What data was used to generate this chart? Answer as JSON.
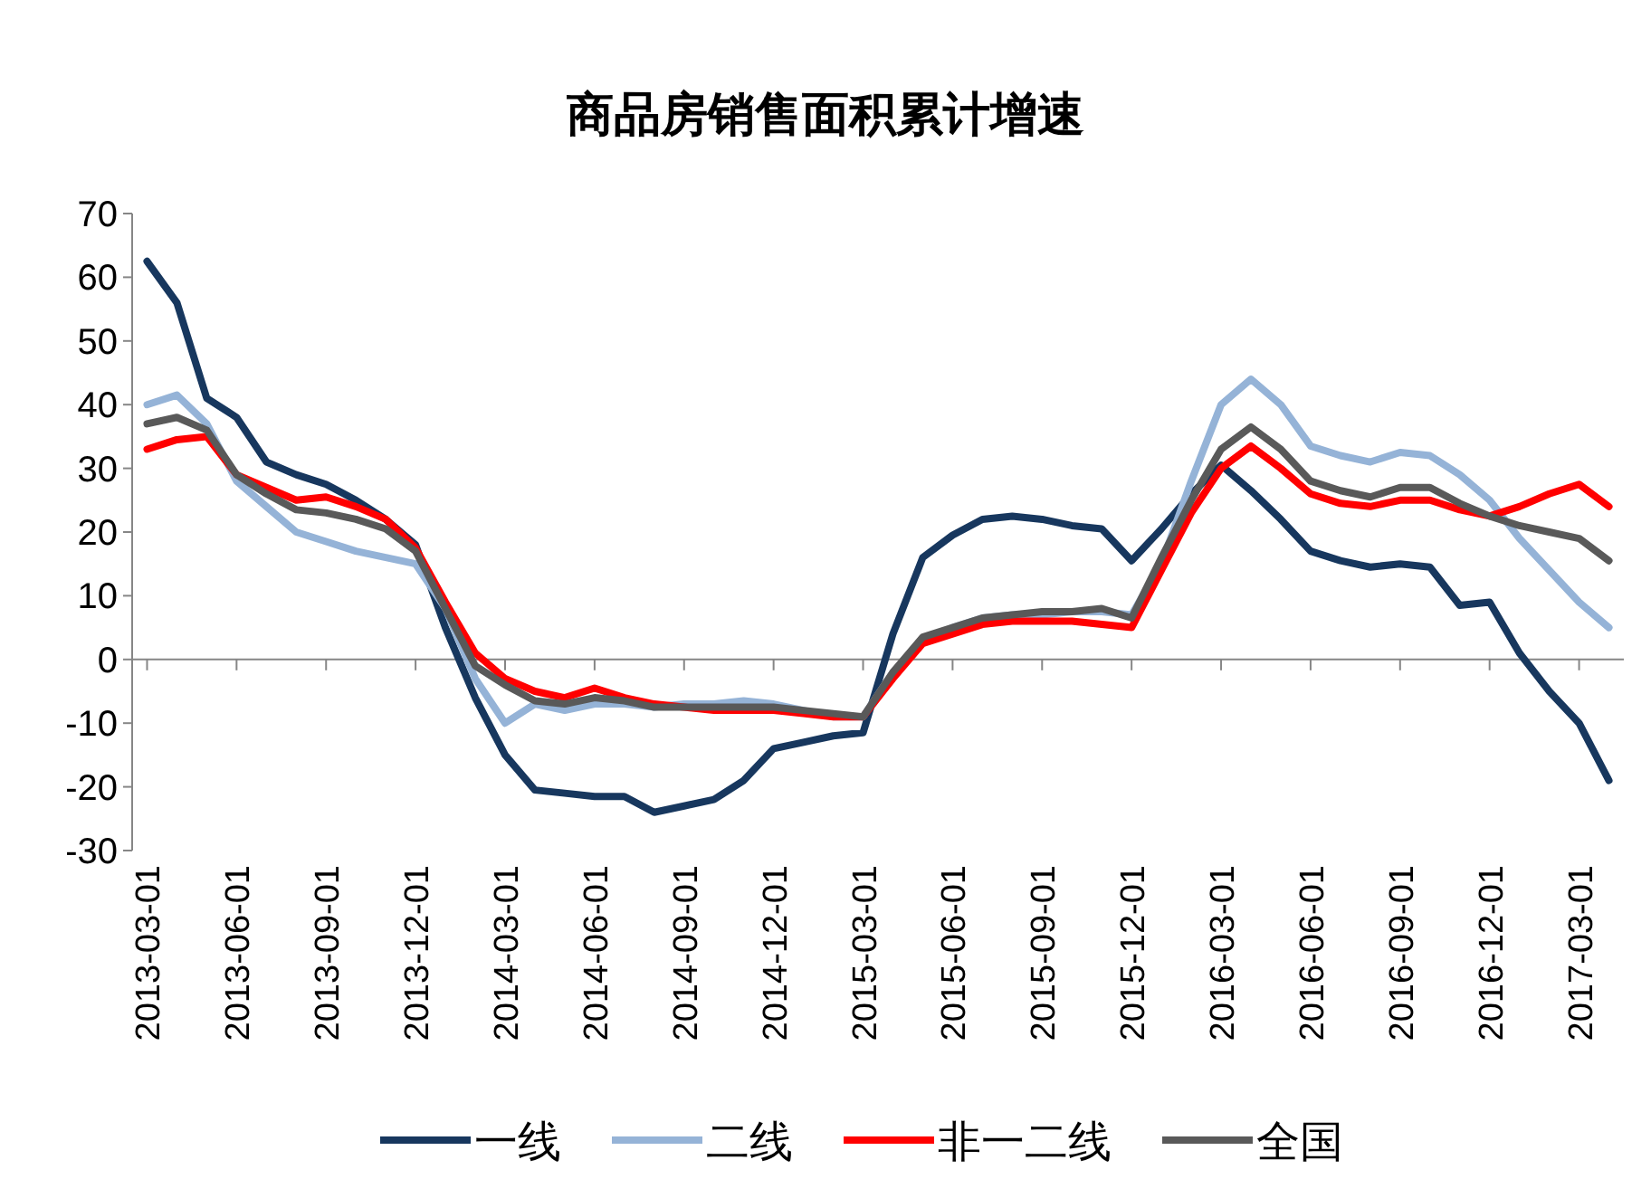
{
  "chart_data": {
    "type": "line",
    "title": "商品房销售面积累计增速",
    "categories": [
      "2013-03-01",
      null,
      null,
      "2013-06-01",
      null,
      null,
      "2013-09-01",
      null,
      null,
      "2013-12-01",
      null,
      null,
      "2014-03-01",
      null,
      null,
      "2014-06-01",
      null,
      null,
      "2014-09-01",
      null,
      null,
      "2014-12-01",
      null,
      null,
      "2015-03-01",
      null,
      null,
      "2015-06-01",
      null,
      null,
      "2015-09-01",
      null,
      null,
      "2015-12-01",
      null,
      null,
      "2016-03-01",
      null,
      null,
      "2016-06-01",
      null,
      null,
      "2016-09-01",
      null,
      null,
      "2016-12-01",
      null,
      null,
      "2017-03-01",
      null
    ],
    "series": [
      {
        "name": "一线",
        "color": "#17375e",
        "values": [
          62.5,
          56,
          41,
          38,
          31,
          29,
          27.5,
          25,
          22,
          18,
          5,
          -6,
          -15,
          -20.5,
          -21,
          -21.5,
          -21.5,
          -24,
          -23,
          -22,
          -19,
          -14,
          -13,
          -12,
          -11.5,
          4,
          16,
          19.5,
          22,
          22.5,
          22,
          21,
          20.5,
          15.5,
          20.5,
          26,
          30.5,
          26.5,
          22,
          17,
          15.5,
          14.5,
          15,
          14.5,
          8.5,
          9,
          1,
          -5,
          -10,
          -19
        ]
      },
      {
        "name": "二线",
        "color": "#95b3d7",
        "values": [
          40,
          41.5,
          37,
          28,
          24,
          20,
          18.5,
          17,
          16,
          15,
          8,
          -3,
          -10,
          -7,
          -8,
          -7,
          -7,
          -7.5,
          -7,
          -7,
          -6.5,
          -7,
          -8,
          -9,
          -9,
          -2,
          3,
          5,
          6.5,
          7,
          7,
          7.5,
          7.5,
          7,
          15,
          28,
          40,
          44,
          40,
          33.5,
          32,
          31,
          32.5,
          32,
          29,
          25,
          19,
          14,
          9,
          5
        ]
      },
      {
        "name": "非一二线",
        "color": "#ff0000",
        "values": [
          33,
          34.5,
          35,
          29,
          27,
          25,
          25.5,
          24,
          22,
          17.5,
          9,
          1,
          -3,
          -5,
          -6,
          -4.5,
          -6,
          -7,
          -7.5,
          -8,
          -8,
          -8,
          -8.5,
          -9,
          -9,
          -3,
          2.5,
          4,
          5.5,
          6,
          6,
          6,
          5.5,
          5,
          14,
          23,
          30,
          33.5,
          30,
          26,
          24.5,
          24,
          25,
          25,
          23.5,
          22.5,
          24,
          26,
          27.5,
          24
        ]
      },
      {
        "name": "全国",
        "color": "#595959",
        "values": [
          37,
          38,
          36,
          29,
          26,
          23.5,
          23,
          22,
          20.5,
          17,
          8,
          -1,
          -4,
          -6.5,
          -7,
          -6,
          -6.5,
          -7.5,
          -7.5,
          -7.5,
          -7.5,
          -7.5,
          -8,
          -8.5,
          -9,
          -2,
          3.5,
          5,
          6.5,
          7,
          7.5,
          7.5,
          8,
          6.5,
          16,
          25,
          33,
          36.5,
          33,
          28,
          26.5,
          25.5,
          27,
          27,
          24.5,
          22.5,
          21,
          20,
          19,
          15.5
        ]
      }
    ],
    "ylim": [
      -30,
      70
    ],
    "yticks": [
      -30,
      -20,
      -10,
      0,
      10,
      20,
      30,
      40,
      50,
      60,
      70
    ],
    "legend": "bottom",
    "marker": "none",
    "line_style": "solid"
  }
}
